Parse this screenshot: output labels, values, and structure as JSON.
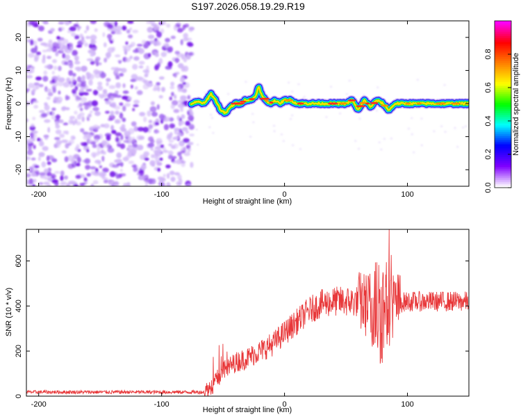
{
  "title": "S197.2026.058.19.29.R19",
  "chart_data": [
    {
      "type": "heatmap",
      "panel": "spectrogram",
      "xlabel": "Height of straight line (km)",
      "ylabel": "Frequency (Hz)",
      "xlim": [
        -210,
        150
      ],
      "ylim": [
        -25,
        25
      ],
      "xticks": [
        -200,
        -100,
        0,
        100
      ],
      "yticks": [
        -20,
        -10,
        0,
        10,
        20
      ],
      "noise_region_x": [
        -210,
        -75
      ],
      "signal_track": {
        "x": [
          -76,
          -70,
          -65,
          -60,
          -56,
          -52,
          -48,
          -44,
          -40,
          -36,
          -32,
          -28,
          -24,
          -21,
          -18,
          -15,
          -12,
          -8,
          -4,
          0,
          5,
          10,
          20,
          30,
          40,
          50,
          55,
          60,
          65,
          70,
          75,
          80,
          85,
          90,
          95,
          100,
          110,
          120,
          130,
          140,
          150
        ],
        "y": [
          0,
          0.5,
          0,
          3,
          1,
          -2,
          -3,
          -1,
          0,
          0,
          1,
          1,
          2,
          5,
          2,
          1,
          0,
          1,
          0,
          1,
          1,
          0,
          0,
          0,
          0,
          0,
          1,
          -2,
          1,
          -1,
          1,
          0,
          -2,
          0,
          0,
          0,
          0,
          0,
          0,
          0,
          0
        ]
      },
      "colorbar": {
        "label": "Normalized spectral amplitude",
        "ticks": [
          0.0,
          0.2,
          0.4,
          0.6,
          0.8
        ],
        "tick_labels": [
          "0.0",
          "0.2",
          "0.4",
          "0.6",
          "0.8"
        ],
        "range": [
          0,
          1
        ],
        "colormap": [
          "#ffffff",
          "#8000ff",
          "#0000ff",
          "#00ffff",
          "#00ff00",
          "#ffff00",
          "#ff8000",
          "#ff0000",
          "#ff00ff"
        ]
      }
    },
    {
      "type": "line",
      "panel": "snr",
      "xlabel": "Height of straight line (km)",
      "ylabel": "SNR (10 * v/v)",
      "xlim": [
        -210,
        150
      ],
      "ylim": [
        0,
        740
      ],
      "xticks": [
        -200,
        -100,
        0,
        100
      ],
      "yticks": [
        0,
        200,
        400,
        600
      ],
      "series": [
        {
          "name": "SNR",
          "color": "#e8383a",
          "baseline_profile": {
            "x": [
              -210,
              -65,
              -60,
              -50,
              -40,
              -30,
              -20,
              -10,
              0,
              10,
              20,
              30,
              40,
              50,
              60,
              70,
              80,
              90,
              100,
              110,
              120,
              130,
              140,
              150
            ],
            "y": [
              18,
              18,
              40,
              110,
              150,
              170,
              200,
              230,
              280,
              330,
              380,
              410,
              420,
              420,
              420,
              400,
              390,
              410,
              420,
              420,
              420,
              420,
              420,
              420
            ]
          },
          "peak_max": 740
        }
      ]
    }
  ]
}
